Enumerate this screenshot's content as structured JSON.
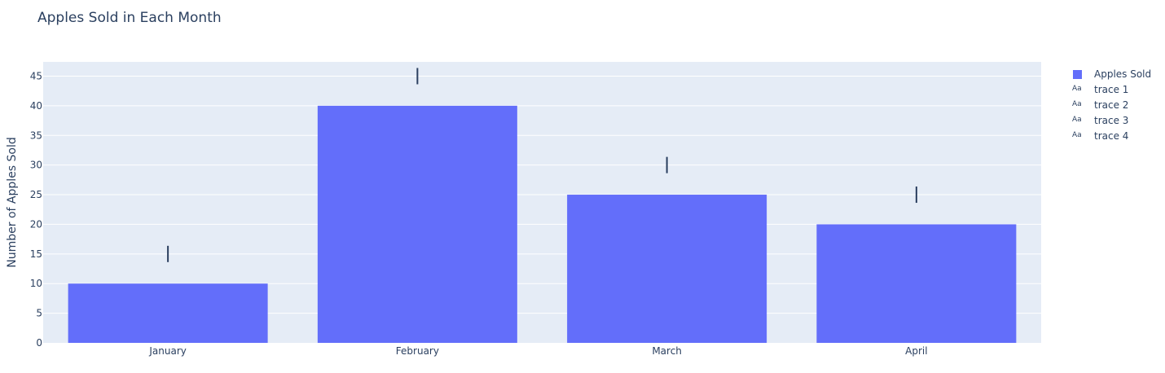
{
  "chart_data": {
    "type": "bar",
    "title": "Apples Sold in Each Month",
    "xlabel": "",
    "ylabel": "Number of Apples Sold",
    "categories": [
      "January",
      "February",
      "March",
      "April"
    ],
    "series": [
      {
        "name": "Apples Sold",
        "values": [
          10,
          40,
          25,
          20
        ],
        "color": "#636efa"
      }
    ],
    "annotation_traces": [
      {
        "name": "trace 1",
        "x": "January",
        "y": 15,
        "marker": "|"
      },
      {
        "name": "trace 2",
        "x": "February",
        "y": 45,
        "marker": "|"
      },
      {
        "name": "trace 3",
        "x": "March",
        "y": 30,
        "marker": "|"
      },
      {
        "name": "trace 4",
        "x": "April",
        "y": 25,
        "marker": "|"
      }
    ],
    "ylim": [
      0,
      47.4
    ],
    "yticks": [
      0,
      5,
      10,
      15,
      20,
      25,
      30,
      35,
      40,
      45
    ],
    "grid": true,
    "legend_placement": "top-right",
    "legend_items": [
      "Apples Sold",
      "trace 1",
      "trace 2",
      "trace 3",
      "trace 4"
    ],
    "legend_text_symbol": "Aa",
    "colors": {
      "plot_bg": "#e5ecf6",
      "grid": "#ffffff",
      "bar": "#636efa",
      "text": "#2a3f5f",
      "marker": "#2a3f5f"
    }
  }
}
